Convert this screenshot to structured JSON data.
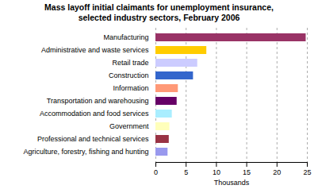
{
  "chart_data": {
    "type": "bar",
    "orientation": "horizontal",
    "title": "Mass layoff initial claimants for unemployment insurance,\nselected industry sectors, February 2006",
    "categories": [
      "Agriculture, forestry, fishing and hunting",
      "Professional and technical services",
      "Government",
      "Accommodation and food services",
      "Transportation and warehousing",
      "Information",
      "Construction",
      "Retail trade",
      "Administrative and waste services",
      "Manufacturing"
    ],
    "values": [
      2.0,
      2.2,
      2.3,
      2.7,
      3.5,
      3.7,
      6.2,
      6.9,
      8.4,
      24.8
    ],
    "colors": [
      "#9999ee",
      "#993344",
      "#ffffbb",
      "#aaeeff",
      "#660066",
      "#ff9977",
      "#3366cc",
      "#ccccff",
      "#ffcc00",
      "#993366"
    ],
    "xlabel": "Thousands",
    "xlim": [
      0,
      25
    ],
    "xticks": [
      0,
      5,
      10,
      15,
      20,
      25
    ],
    "grid": true
  }
}
